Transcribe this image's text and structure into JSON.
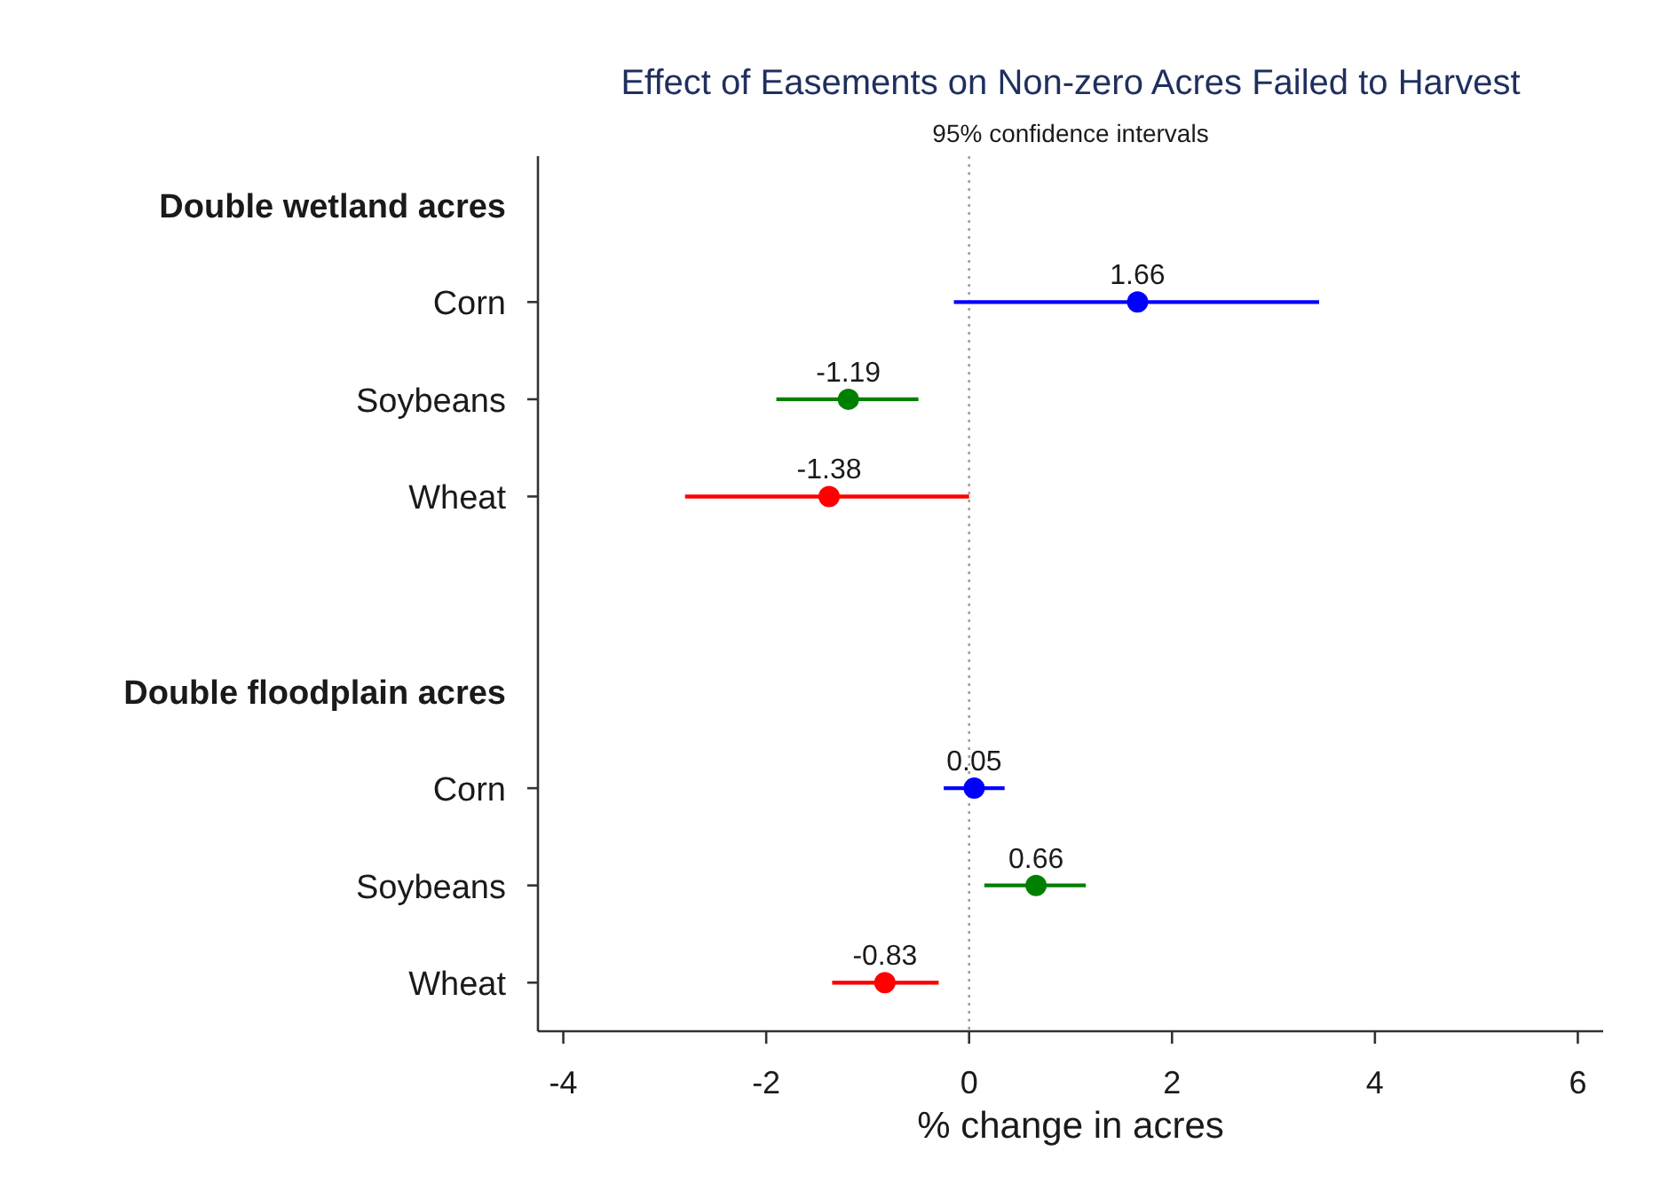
{
  "chart_data": {
    "type": "scatter",
    "orientation": "horizontal",
    "title": "Effect of Easements on Non-zero Acres Failed to Harvest",
    "subtitle": "95% confidence intervals",
    "xlabel": "% change in acres",
    "categories": [
      "Double wetland acres",
      "Corn",
      "Soybeans",
      "Wheat",
      null,
      "Double floodplain acres",
      "Corn",
      "Soybeans",
      "Wheat"
    ],
    "series": [
      {
        "color": "#0000ff",
        "values": [
          null,
          1.66,
          null,
          null,
          null,
          null,
          0.05,
          null,
          null
        ],
        "errors": [
          null,
          [
            -0.15,
            3.45
          ],
          null,
          null,
          null,
          null,
          [
            -0.25,
            0.35
          ],
          null,
          null
        ]
      },
      {
        "color": "#008000",
        "values": [
          null,
          null,
          -1.19,
          null,
          null,
          null,
          null,
          0.66,
          null
        ],
        "errors": [
          null,
          null,
          [
            -1.9,
            -0.5
          ],
          null,
          null,
          null,
          null,
          [
            0.15,
            1.15
          ],
          null
        ]
      },
      {
        "color": "#ff0000",
        "values": [
          null,
          null,
          null,
          -1.38,
          null,
          null,
          null,
          null,
          -0.83
        ],
        "errors": [
          null,
          null,
          null,
          [
            -2.8,
            0
          ],
          null,
          null,
          null,
          null,
          [
            -1.35,
            -0.3
          ]
        ]
      }
    ],
    "xlim": [
      -4.25,
      6.25
    ],
    "xticks": [
      -4,
      -2,
      0,
      2,
      4,
      6
    ],
    "ref_lines": [
      {
        "axis": "x",
        "value": 0,
        "line_style": "dotted",
        "color": "#a0a0a0"
      }
    ],
    "data_labels": true,
    "marker": "circle"
  }
}
